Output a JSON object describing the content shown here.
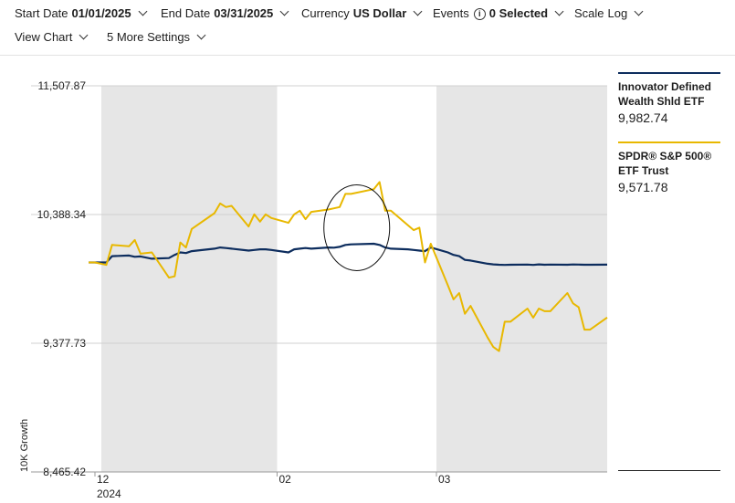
{
  "toolbar": {
    "start_date": {
      "label": "Start Date",
      "value": "01/01/2025"
    },
    "end_date": {
      "label": "End Date",
      "value": "03/31/2025"
    },
    "currency": {
      "label": "Currency",
      "value": "US Dollar"
    },
    "events": {
      "label": "Events",
      "icon": "info-icon",
      "value": "0 Selected"
    },
    "scale": {
      "label": "Scale",
      "value": "Log"
    },
    "view_chart": {
      "label": "View Chart"
    },
    "more_settings": {
      "label": "5 More Settings"
    }
  },
  "legend": [
    {
      "name": "Innovator Defined Wealth Shld ETF",
      "value": "9,982.74",
      "color": "#0d2d5e"
    },
    {
      "name": "SPDR® S&P 500® ETF Trust",
      "value": "9,571.78",
      "color": "#e8b800"
    }
  ],
  "chart_data": {
    "type": "line",
    "ylabel": "10K Growth",
    "yscale": "log",
    "ylim": [
      8465.42,
      11507.87
    ],
    "yticks": [
      "11,507.87",
      "10,388.34",
      "9,377.73",
      "8,465.42"
    ],
    "xlim": [
      "2024-12-31",
      "2025-03-31"
    ],
    "xticks": [
      {
        "date": "2024-12-31",
        "label": "12",
        "sublabel": "2024"
      },
      {
        "date": "2025-02-01",
        "label": "02",
        "sublabel": ""
      },
      {
        "date": "2025-03-01",
        "label": "03",
        "sublabel": ""
      }
    ],
    "shaded_months": [
      [
        "2024-12-31",
        "2025-02-01"
      ],
      [
        "2025-03-01",
        "2025-03-31"
      ]
    ],
    "annotation": {
      "shape": "ellipse",
      "center_date": "2025-02-15",
      "center_value": 10280
    },
    "series": [
      {
        "name": "Innovator Defined Wealth Shld ETF",
        "color": "#0d2d5e",
        "x": [
          "2024-12-31",
          "2025-01-02",
          "2025-01-03",
          "2025-01-06",
          "2025-01-07",
          "2025-01-08",
          "2025-01-10",
          "2025-01-13",
          "2025-01-14",
          "2025-01-15",
          "2025-01-16",
          "2025-01-17",
          "2025-01-21",
          "2025-01-22",
          "2025-01-23",
          "2025-01-24",
          "2025-01-27",
          "2025-01-28",
          "2025-01-29",
          "2025-01-30",
          "2025-01-31",
          "2025-02-03",
          "2025-02-04",
          "2025-02-05",
          "2025-02-06",
          "2025-02-07",
          "2025-02-10",
          "2025-02-11",
          "2025-02-12",
          "2025-02-13",
          "2025-02-14",
          "2025-02-18",
          "2025-02-19",
          "2025-02-20",
          "2025-02-21",
          "2025-02-24",
          "2025-02-25",
          "2025-02-26",
          "2025-02-27",
          "2025-02-28",
          "2025-03-03",
          "2025-03-04",
          "2025-03-05",
          "2025-03-06",
          "2025-03-07",
          "2025-03-10",
          "2025-03-11",
          "2025-03-12",
          "2025-03-13",
          "2025-03-14",
          "2025-03-17",
          "2025-03-18",
          "2025-03-19",
          "2025-03-20",
          "2025-03-21",
          "2025-03-24",
          "2025-03-25",
          "2025-03-26",
          "2025-03-27",
          "2025-03-28",
          "2025-03-31"
        ],
        "y": [
          10000,
          10000,
          10050,
          10055,
          10045,
          10048,
          10030,
          10035,
          10060,
          10080,
          10075,
          10090,
          10110,
          10120,
          10115,
          10110,
          10095,
          10100,
          10105,
          10105,
          10100,
          10080,
          10105,
          10110,
          10115,
          10110,
          10120,
          10118,
          10125,
          10140,
          10145,
          10150,
          10140,
          10120,
          10110,
          10105,
          10100,
          10095,
          10090,
          10120,
          10080,
          10060,
          10050,
          10020,
          10015,
          9990,
          9985,
          9982,
          9980,
          9982,
          9983,
          9980,
          9985,
          9982,
          9983,
          9982,
          9984,
          9983,
          9982,
          9982,
          9982.74
        ]
      },
      {
        "name": "SPDR® S&P 500® ETF Trust",
        "color": "#e8b800",
        "x": [
          "2024-12-31",
          "2025-01-02",
          "2025-01-03",
          "2025-01-06",
          "2025-01-07",
          "2025-01-08",
          "2025-01-10",
          "2025-01-13",
          "2025-01-14",
          "2025-01-15",
          "2025-01-16",
          "2025-01-17",
          "2025-01-21",
          "2025-01-22",
          "2025-01-23",
          "2025-01-24",
          "2025-01-27",
          "2025-01-28",
          "2025-01-29",
          "2025-01-30",
          "2025-01-31",
          "2025-02-03",
          "2025-02-04",
          "2025-02-05",
          "2025-02-06",
          "2025-02-07",
          "2025-02-10",
          "2025-02-11",
          "2025-02-12",
          "2025-02-13",
          "2025-02-14",
          "2025-02-18",
          "2025-02-19",
          "2025-02-20",
          "2025-02-21",
          "2025-02-24",
          "2025-02-25",
          "2025-02-26",
          "2025-02-27",
          "2025-02-28",
          "2025-03-03",
          "2025-03-04",
          "2025-03-05",
          "2025-03-06",
          "2025-03-07",
          "2025-03-10",
          "2025-03-11",
          "2025-03-12",
          "2025-03-13",
          "2025-03-14",
          "2025-03-17",
          "2025-03-18",
          "2025-03-19",
          "2025-03-20",
          "2025-03-21",
          "2025-03-24",
          "2025-03-25",
          "2025-03-26",
          "2025-03-27",
          "2025-03-28",
          "2025-03-31"
        ],
        "y": [
          10000,
          9980,
          10140,
          10130,
          10180,
          10070,
          10080,
          9880,
          9890,
          10160,
          10120,
          10270,
          10400,
          10480,
          10450,
          10460,
          10290,
          10390,
          10330,
          10390,
          10360,
          10320,
          10390,
          10420,
          10350,
          10410,
          10430,
          10440,
          10450,
          10560,
          10560,
          10600,
          10660,
          10420,
          10420,
          10300,
          10260,
          10280,
          10000,
          10150,
          9820,
          9710,
          9760,
          9600,
          9660,
          9420,
          9350,
          9320,
          9540,
          9540,
          9640,
          9570,
          9640,
          9620,
          9620,
          9760,
          9680,
          9650,
          9480,
          9480,
          9571.78
        ]
      }
    ]
  }
}
